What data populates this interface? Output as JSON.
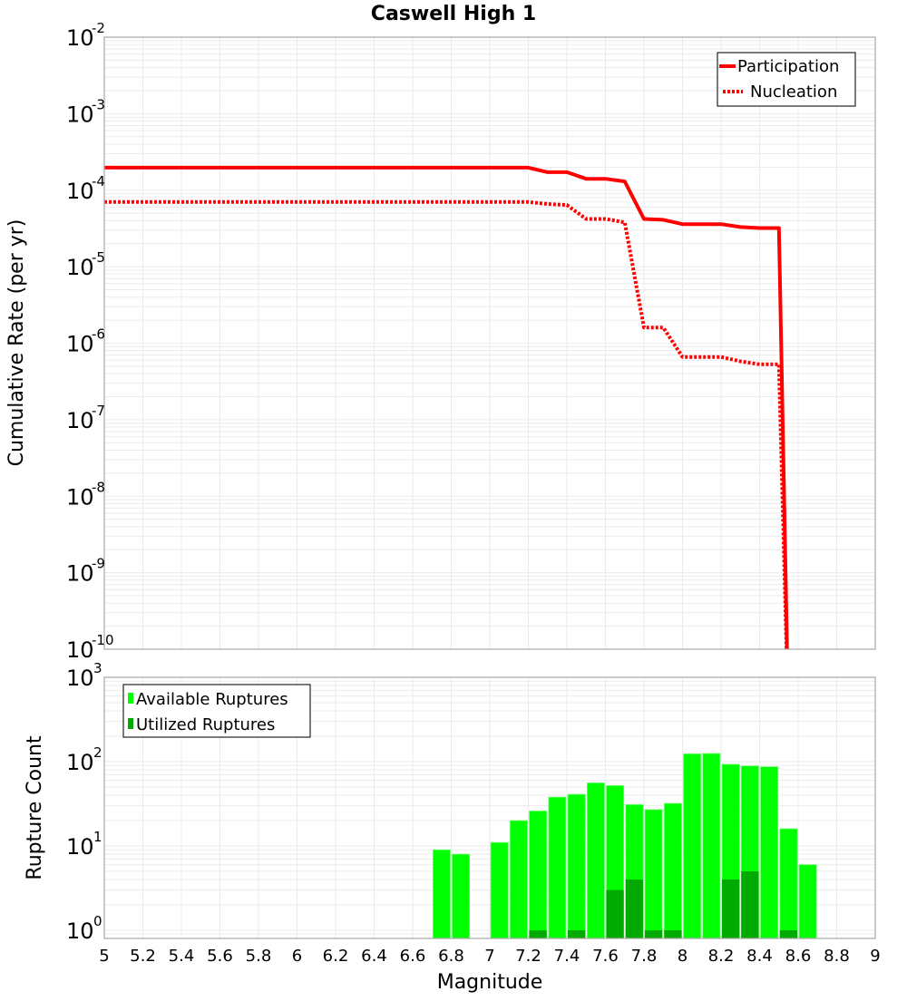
{
  "chart_data": [
    {
      "id": "upper",
      "type": "line",
      "title": "Caswell High 1",
      "xlabel": "",
      "ylabel": "Cumulative Rate (per yr)",
      "xscale": "linear",
      "yscale": "log",
      "xlim": [
        5,
        9
      ],
      "ylim": [
        1e-10,
        0.01
      ],
      "y_ticks_exponents": [
        -2,
        -3,
        -4,
        -5,
        -6,
        -7,
        -8,
        -9,
        -10
      ],
      "grid": true,
      "legend_position": "upper right",
      "series": [
        {
          "name": "Participation",
          "style": "solid",
          "color": "#ff0000",
          "x": [
            5.0,
            5.1,
            5.2,
            5.3,
            5.4,
            5.5,
            5.6,
            5.7,
            5.8,
            5.9,
            6.0,
            6.1,
            6.2,
            6.3,
            6.4,
            6.5,
            6.6,
            6.7,
            6.8,
            6.9,
            7.0,
            7.1,
            7.2,
            7.3,
            7.4,
            7.5,
            7.6,
            7.7,
            7.8,
            7.9,
            8.0,
            8.1,
            8.2,
            8.3,
            8.4,
            8.5,
            8.55
          ],
          "y": [
            0.000197,
            0.000197,
            0.000197,
            0.000197,
            0.000197,
            0.000197,
            0.000197,
            0.000197,
            0.000197,
            0.000197,
            0.000197,
            0.000197,
            0.000197,
            0.000197,
            0.000197,
            0.000197,
            0.000197,
            0.000197,
            0.000197,
            0.000197,
            0.000197,
            0.000197,
            0.000197,
            0.000172,
            0.000172,
            0.000141,
            0.000141,
            0.00013,
            4.2e-05,
            4.1e-05,
            3.6e-05,
            3.6e-05,
            3.6e-05,
            3.3e-05,
            3.2e-05,
            3.2e-05,
            1e-11
          ]
        },
        {
          "name": "Nucleation",
          "style": "dotted",
          "color": "#ff0000",
          "x": [
            5.0,
            5.1,
            5.2,
            5.3,
            5.4,
            5.5,
            5.6,
            5.7,
            5.8,
            5.9,
            6.0,
            6.1,
            6.2,
            6.3,
            6.4,
            6.5,
            6.6,
            6.7,
            6.8,
            6.9,
            7.0,
            7.1,
            7.2,
            7.3,
            7.4,
            7.5,
            7.6,
            7.7,
            7.8,
            7.9,
            8.0,
            8.1,
            8.2,
            8.3,
            8.4,
            8.5,
            8.55
          ],
          "y": [
            7e-05,
            7e-05,
            7e-05,
            7e-05,
            7e-05,
            7e-05,
            7e-05,
            7e-05,
            7e-05,
            7e-05,
            7e-05,
            7e-05,
            7e-05,
            7e-05,
            7e-05,
            7e-05,
            7e-05,
            7e-05,
            7e-05,
            7e-05,
            7e-05,
            7e-05,
            7e-05,
            6.6e-05,
            6.4e-05,
            4.2e-05,
            4.2e-05,
            3.8e-05,
            1.6e-06,
            1.6e-06,
            6.6e-07,
            6.6e-07,
            6.6e-07,
            5.8e-07,
            5.3e-07,
            5.3e-07,
            1e-11
          ]
        }
      ]
    },
    {
      "id": "lower",
      "type": "bar",
      "title": "",
      "xlabel": "Magnitude",
      "ylabel": "Rupture Count",
      "xscale": "linear",
      "yscale": "log",
      "xlim": [
        5,
        9
      ],
      "ylim": [
        0.8,
        1000
      ],
      "y_ticks_exponents": [
        3,
        2,
        1,
        0
      ],
      "x_ticks": [
        "5",
        "5.2",
        "5.4",
        "5.6",
        "5.8",
        "6",
        "6.2",
        "6.4",
        "6.6",
        "6.8",
        "7",
        "7.2",
        "7.4",
        "7.6",
        "7.8",
        "8",
        "8.2",
        "8.4",
        "8.6",
        "8.8",
        "9"
      ],
      "grid": true,
      "legend_position": "upper left",
      "bar_width": 0.1,
      "series": [
        {
          "name": "Available Ruptures",
          "color": "#00ff00",
          "x": [
            6.75,
            6.85,
            7.05,
            7.15,
            7.25,
            7.35,
            7.45,
            7.55,
            7.65,
            7.75,
            7.85,
            7.95,
            8.05,
            8.15,
            8.25,
            8.35,
            8.45,
            8.55,
            8.65
          ],
          "values": [
            9,
            8,
            11,
            20,
            26,
            38,
            41,
            56,
            52,
            31,
            27,
            32,
            124,
            125,
            93,
            89,
            87,
            16,
            6
          ]
        },
        {
          "name": "Utilized Ruptures",
          "color": "#00aa00",
          "x": [
            7.25,
            7.45,
            7.65,
            7.75,
            7.85,
            7.95,
            8.25,
            8.35,
            8.55
          ],
          "values": [
            1,
            1,
            3,
            4,
            1,
            1,
            4,
            5,
            1
          ]
        }
      ]
    }
  ]
}
